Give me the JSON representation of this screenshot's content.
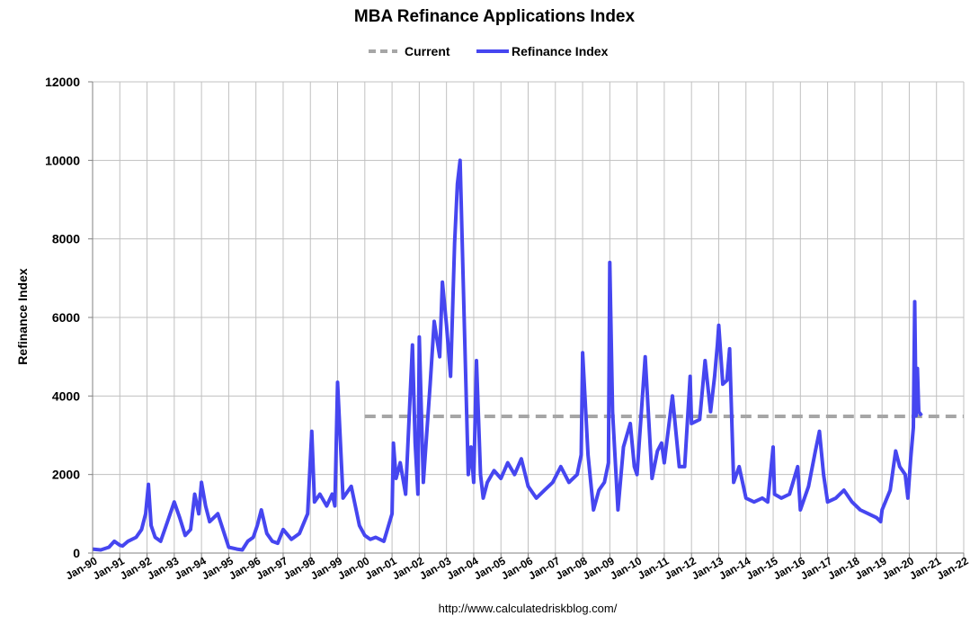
{
  "chart_data": {
    "type": "line",
    "title": "MBA Refinance Applications Index",
    "ylabel": "Refinance Index",
    "xlabel": "",
    "ylim": [
      0,
      12000
    ],
    "yticks": [
      "0",
      "2000",
      "4000",
      "6000",
      "8000",
      "10000",
      "12000"
    ],
    "xlim": [
      1990,
      2022
    ],
    "xticks": [
      "Jan-90",
      "Jan-91",
      "Jan-92",
      "Jan-93",
      "Jan-94",
      "Jan-95",
      "Jan-96",
      "Jan-97",
      "Jan-98",
      "Jan-99",
      "Jan-00",
      "Jan-01",
      "Jan-02",
      "Jan-03",
      "Jan-04",
      "Jan-05",
      "Jan-06",
      "Jan-07",
      "Jan-08",
      "Jan-09",
      "Jan-10",
      "Jan-11",
      "Jan-12",
      "Jan-13",
      "Jan-14",
      "Jan-15",
      "Jan-16",
      "Jan-17",
      "Jan-18",
      "Jan-19",
      "Jan-20",
      "Jan-21",
      "Jan-22"
    ],
    "grid": true,
    "legend": "top-center",
    "legend_entries": [
      "Current",
      "Refinance Index"
    ],
    "colors": {
      "series": "#4646f0",
      "current": "#a6a6a6",
      "grid": "#c0c0c0"
    },
    "current": {
      "name": "Current",
      "value": 3480,
      "x_start": 2000.0,
      "x_end": 2022.0
    },
    "series": [
      {
        "name": "Refinance Index",
        "x": [
          1990.0,
          1990.3,
          1990.6,
          1990.8,
          1991.0,
          1991.1,
          1991.3,
          1991.6,
          1991.8,
          1991.95,
          1992.05,
          1992.15,
          1992.3,
          1992.5,
          1992.75,
          1993.0,
          1993.2,
          1993.4,
          1993.6,
          1993.75,
          1993.9,
          1994.0,
          1994.15,
          1994.3,
          1994.6,
          1995.0,
          1995.3,
          1995.5,
          1995.7,
          1995.9,
          1996.05,
          1996.2,
          1996.4,
          1996.6,
          1996.8,
          1997.0,
          1997.3,
          1997.6,
          1997.9,
          1998.05,
          1998.15,
          1998.35,
          1998.6,
          1998.8,
          1998.9,
          1999.0,
          1999.2,
          1999.5,
          1999.8,
          2000.0,
          2000.2,
          2000.4,
          2000.7,
          2001.0,
          2001.05,
          2001.15,
          2001.3,
          2001.5,
          2001.75,
          2001.85,
          2001.95,
          2002.0,
          2002.15,
          2002.4,
          2002.55,
          2002.75,
          2002.85,
          2003.0,
          2003.15,
          2003.3,
          2003.4,
          2003.5,
          2003.65,
          2003.8,
          2003.9,
          2004.0,
          2004.1,
          2004.25,
          2004.35,
          2004.5,
          2004.75,
          2005.0,
          2005.25,
          2005.5,
          2005.75,
          2006.0,
          2006.3,
          2006.6,
          2006.9,
          2007.2,
          2007.5,
          2007.8,
          2007.95,
          2008.0,
          2008.2,
          2008.4,
          2008.6,
          2008.8,
          2008.95,
          2009.0,
          2009.1,
          2009.3,
          2009.5,
          2009.75,
          2009.9,
          2010.0,
          2010.3,
          2010.55,
          2010.75,
          2010.9,
          2011.0,
          2011.3,
          2011.55,
          2011.75,
          2011.95,
          2012.0,
          2012.3,
          2012.5,
          2012.7,
          2012.85,
          2012.95,
          2013.0,
          2013.15,
          2013.3,
          2013.4,
          2013.55,
          2013.75,
          2014.0,
          2014.3,
          2014.6,
          2014.8,
          2015.0,
          2015.05,
          2015.3,
          2015.6,
          2015.9,
          2016.0,
          2016.3,
          2016.55,
          2016.7,
          2016.85,
          2017.0,
          2017.3,
          2017.6,
          2017.9,
          2018.2,
          2018.5,
          2018.8,
          2018.95,
          2019.0,
          2019.3,
          2019.5,
          2019.65,
          2019.85,
          2019.95,
          2020.05,
          2020.15,
          2020.2,
          2020.25,
          2020.3,
          2020.35,
          2020.45
        ],
        "values": [
          100,
          80,
          150,
          300,
          200,
          180,
          300,
          400,
          600,
          1000,
          1750,
          700,
          400,
          300,
          800,
          1300,
          900,
          450,
          600,
          1500,
          1000,
          1800,
          1200,
          800,
          1000,
          150,
          100,
          80,
          300,
          400,
          700,
          1100,
          500,
          300,
          250,
          600,
          350,
          500,
          1000,
          3100,
          1300,
          1500,
          1200,
          1500,
          1200,
          4350,
          1400,
          1700,
          700,
          450,
          350,
          400,
          300,
          1000,
          2800,
          1900,
          2300,
          1500,
          5300,
          2800,
          1500,
          5500,
          1800,
          4300,
          5900,
          5000,
          6900,
          5800,
          4500,
          7900,
          9400,
          10000,
          6000,
          2000,
          2700,
          1800,
          4900,
          2000,
          1400,
          1800,
          2100,
          1900,
          2300,
          2000,
          2400,
          1700,
          1400,
          1600,
          1800,
          2200,
          1800,
          2000,
          2500,
          5100,
          2500,
          1100,
          1600,
          1800,
          2300,
          7400,
          3600,
          1100,
          2700,
          3300,
          2200,
          2000,
          5000,
          1900,
          2600,
          2800,
          2300,
          4000,
          2200,
          2200,
          4500,
          3300,
          3400,
          4900,
          3600,
          4500,
          5300,
          5800,
          4300,
          4400,
          5200,
          1800,
          2200,
          1400,
          1300,
          1400,
          1300,
          2700,
          1500,
          1400,
          1500,
          2200,
          1100,
          1700,
          2600,
          3100,
          2000,
          1300,
          1400,
          1600,
          1300,
          1100,
          1000,
          900,
          800,
          1100,
          1600,
          2600,
          2200,
          2000,
          1400,
          2400,
          3200,
          6400,
          3500,
          4700,
          3600,
          3500
        ]
      }
    ]
  },
  "footer": "http://www.calculatedriskblog.com/"
}
